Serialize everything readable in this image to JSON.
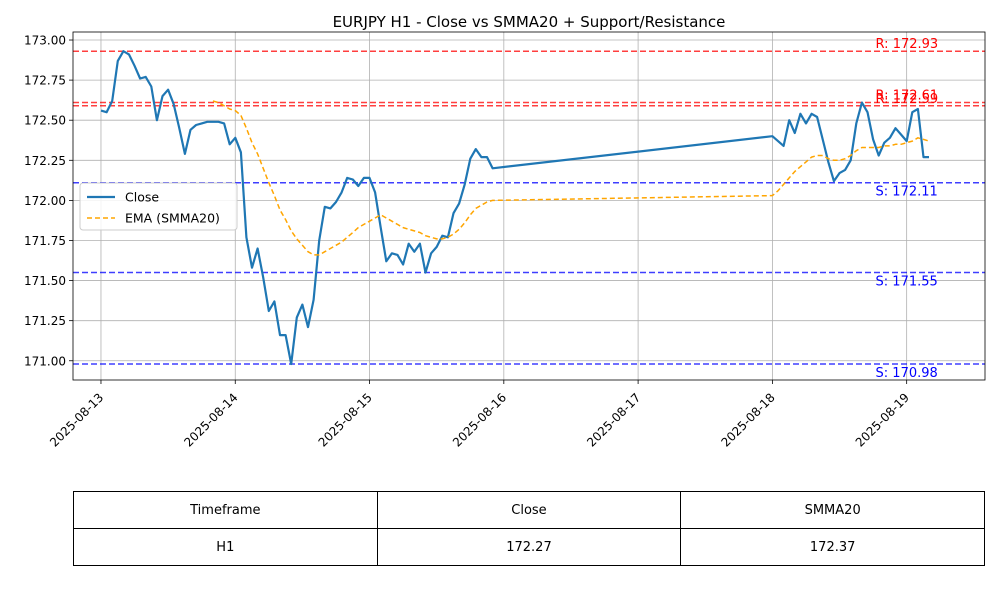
{
  "chart_data": {
    "type": "line",
    "title": "EURJPY H1 - Close vs SMMA20 + Support/Resistance",
    "xlabel": "",
    "ylabel": "",
    "x_ticks": [
      "2025-08-13",
      "2025-08-14",
      "2025-08-15",
      "2025-08-16",
      "2025-08-17",
      "2025-08-18",
      "2025-08-19"
    ],
    "y_ticks": [
      "171.00",
      "171.25",
      "171.50",
      "171.75",
      "172.00",
      "172.25",
      "172.50",
      "172.75",
      "173.00"
    ],
    "xlim": [
      "2025-08-12 19:00",
      "2025-08-19 14:00"
    ],
    "ylim": [
      170.88,
      173.05
    ],
    "grid": true,
    "legend_position": "center-left",
    "series": [
      {
        "name": "Close",
        "style": "solid",
        "color": "#1f77b4",
        "points": [
          [
            "2025-08-13 00:00",
            172.56
          ],
          [
            "2025-08-13 01:00",
            172.55
          ],
          [
            "2025-08-13 02:00",
            172.62
          ],
          [
            "2025-08-13 03:00",
            172.87
          ],
          [
            "2025-08-13 04:00",
            172.93
          ],
          [
            "2025-08-13 05:00",
            172.91
          ],
          [
            "2025-08-13 06:00",
            172.84
          ],
          [
            "2025-08-13 07:00",
            172.76
          ],
          [
            "2025-08-13 08:00",
            172.77
          ],
          [
            "2025-08-13 09:00",
            172.71
          ],
          [
            "2025-08-13 10:00",
            172.5
          ],
          [
            "2025-08-13 11:00",
            172.65
          ],
          [
            "2025-08-13 12:00",
            172.69
          ],
          [
            "2025-08-13 13:00",
            172.6
          ],
          [
            "2025-08-13 14:00",
            172.45
          ],
          [
            "2025-08-13 15:00",
            172.29
          ],
          [
            "2025-08-13 16:00",
            172.44
          ],
          [
            "2025-08-13 17:00",
            172.47
          ],
          [
            "2025-08-13 18:00",
            172.48
          ],
          [
            "2025-08-13 19:00",
            172.49
          ],
          [
            "2025-08-13 20:00",
            172.49
          ],
          [
            "2025-08-13 21:00",
            172.49
          ],
          [
            "2025-08-13 22:00",
            172.48
          ],
          [
            "2025-08-13 23:00",
            172.35
          ],
          [
            "2025-08-14 00:00",
            172.39
          ],
          [
            "2025-08-14 01:00",
            172.3
          ],
          [
            "2025-08-14 02:00",
            171.77
          ],
          [
            "2025-08-14 03:00",
            171.58
          ],
          [
            "2025-08-14 04:00",
            171.7
          ],
          [
            "2025-08-14 05:00",
            171.52
          ],
          [
            "2025-08-14 06:00",
            171.31
          ],
          [
            "2025-08-14 07:00",
            171.37
          ],
          [
            "2025-08-14 08:00",
            171.16
          ],
          [
            "2025-08-14 09:00",
            171.16
          ],
          [
            "2025-08-14 10:00",
            170.98
          ],
          [
            "2025-08-14 11:00",
            171.27
          ],
          [
            "2025-08-14 12:00",
            171.35
          ],
          [
            "2025-08-14 13:00",
            171.21
          ],
          [
            "2025-08-14 14:00",
            171.38
          ],
          [
            "2025-08-14 15:00",
            171.75
          ],
          [
            "2025-08-14 16:00",
            171.96
          ],
          [
            "2025-08-14 17:00",
            171.95
          ],
          [
            "2025-08-14 18:00",
            171.99
          ],
          [
            "2025-08-14 19:00",
            172.05
          ],
          [
            "2025-08-14 20:00",
            172.14
          ],
          [
            "2025-08-14 21:00",
            172.13
          ],
          [
            "2025-08-14 22:00",
            172.09
          ],
          [
            "2025-08-14 23:00",
            172.14
          ],
          [
            "2025-08-15 00:00",
            172.14
          ],
          [
            "2025-08-15 01:00",
            172.05
          ],
          [
            "2025-08-15 02:00",
            171.83
          ],
          [
            "2025-08-15 03:00",
            171.62
          ],
          [
            "2025-08-15 04:00",
            171.67
          ],
          [
            "2025-08-15 05:00",
            171.66
          ],
          [
            "2025-08-15 06:00",
            171.6
          ],
          [
            "2025-08-15 07:00",
            171.73
          ],
          [
            "2025-08-15 08:00",
            171.68
          ],
          [
            "2025-08-15 09:00",
            171.73
          ],
          [
            "2025-08-15 10:00",
            171.55
          ],
          [
            "2025-08-15 11:00",
            171.67
          ],
          [
            "2025-08-15 12:00",
            171.71
          ],
          [
            "2025-08-15 13:00",
            171.78
          ],
          [
            "2025-08-15 14:00",
            171.77
          ],
          [
            "2025-08-15 15:00",
            171.92
          ],
          [
            "2025-08-15 16:00",
            171.98
          ],
          [
            "2025-08-15 17:00",
            172.1
          ],
          [
            "2025-08-15 18:00",
            172.26
          ],
          [
            "2025-08-15 19:00",
            172.32
          ],
          [
            "2025-08-15 20:00",
            172.27
          ],
          [
            "2025-08-15 21:00",
            172.27
          ],
          [
            "2025-08-15 22:00",
            172.2
          ],
          [
            "2025-08-18 00:00",
            172.4
          ],
          [
            "2025-08-18 01:00",
            172.37
          ],
          [
            "2025-08-18 02:00",
            172.34
          ],
          [
            "2025-08-18 03:00",
            172.5
          ],
          [
            "2025-08-18 04:00",
            172.42
          ],
          [
            "2025-08-18 05:00",
            172.54
          ],
          [
            "2025-08-18 06:00",
            172.48
          ],
          [
            "2025-08-18 07:00",
            172.54
          ],
          [
            "2025-08-18 08:00",
            172.52
          ],
          [
            "2025-08-18 09:00",
            172.38
          ],
          [
            "2025-08-18 10:00",
            172.24
          ],
          [
            "2025-08-18 11:00",
            172.12
          ],
          [
            "2025-08-18 12:00",
            172.17
          ],
          [
            "2025-08-18 13:00",
            172.19
          ],
          [
            "2025-08-18 14:00",
            172.25
          ],
          [
            "2025-08-18 15:00",
            172.48
          ],
          [
            "2025-08-18 16:00",
            172.61
          ],
          [
            "2025-08-18 17:00",
            172.55
          ],
          [
            "2025-08-18 18:00",
            172.38
          ],
          [
            "2025-08-18 19:00",
            172.28
          ],
          [
            "2025-08-18 20:00",
            172.36
          ],
          [
            "2025-08-18 21:00",
            172.39
          ],
          [
            "2025-08-18 22:00",
            172.45
          ],
          [
            "2025-08-18 23:00",
            172.41
          ],
          [
            "2025-08-19 00:00",
            172.37
          ],
          [
            "2025-08-19 01:00",
            172.55
          ],
          [
            "2025-08-19 02:00",
            172.57
          ],
          [
            "2025-08-19 03:00",
            172.27
          ],
          [
            "2025-08-19 04:00",
            172.27
          ]
        ]
      },
      {
        "name": "EMA (SMMA20)",
        "style": "dashed",
        "color": "#ffa500",
        "points": [
          [
            "2025-08-13 20:00",
            172.62
          ],
          [
            "2025-08-13 21:00",
            172.61
          ],
          [
            "2025-08-13 22:00",
            172.59
          ],
          [
            "2025-08-13 23:00",
            172.57
          ],
          [
            "2025-08-14 00:00",
            172.56
          ],
          [
            "2025-08-14 01:00",
            172.53
          ],
          [
            "2025-08-14 02:00",
            172.45
          ],
          [
            "2025-08-14 03:00",
            172.36
          ],
          [
            "2025-08-14 04:00",
            172.29
          ],
          [
            "2025-08-14 05:00",
            172.2
          ],
          [
            "2025-08-14 06:00",
            172.11
          ],
          [
            "2025-08-14 07:00",
            172.03
          ],
          [
            "2025-08-14 08:00",
            171.94
          ],
          [
            "2025-08-14 09:00",
            171.88
          ],
          [
            "2025-08-14 10:00",
            171.81
          ],
          [
            "2025-08-14 11:00",
            171.76
          ],
          [
            "2025-08-14 12:00",
            171.72
          ],
          [
            "2025-08-14 13:00",
            171.68
          ],
          [
            "2025-08-14 14:00",
            171.66
          ],
          [
            "2025-08-14 15:00",
            171.66
          ],
          [
            "2025-08-14 16:00",
            171.68
          ],
          [
            "2025-08-14 17:00",
            171.7
          ],
          [
            "2025-08-14 18:00",
            171.72
          ],
          [
            "2025-08-14 19:00",
            171.74
          ],
          [
            "2025-08-14 20:00",
            171.77
          ],
          [
            "2025-08-14 21:00",
            171.8
          ],
          [
            "2025-08-14 22:00",
            171.83
          ],
          [
            "2025-08-14 23:00",
            171.85
          ],
          [
            "2025-08-15 00:00",
            171.87
          ],
          [
            "2025-08-15 01:00",
            171.89
          ],
          [
            "2025-08-15 02:00",
            171.91
          ],
          [
            "2025-08-15 03:00",
            171.89
          ],
          [
            "2025-08-15 04:00",
            171.87
          ],
          [
            "2025-08-15 05:00",
            171.85
          ],
          [
            "2025-08-15 06:00",
            171.83
          ],
          [
            "2025-08-15 07:00",
            171.82
          ],
          [
            "2025-08-15 08:00",
            171.81
          ],
          [
            "2025-08-15 09:00",
            171.8
          ],
          [
            "2025-08-15 10:00",
            171.78
          ],
          [
            "2025-08-15 11:00",
            171.77
          ],
          [
            "2025-08-15 12:00",
            171.76
          ],
          [
            "2025-08-15 13:00",
            171.76
          ],
          [
            "2025-08-15 14:00",
            171.77
          ],
          [
            "2025-08-15 15:00",
            171.79
          ],
          [
            "2025-08-15 16:00",
            171.82
          ],
          [
            "2025-08-15 17:00",
            171.86
          ],
          [
            "2025-08-15 18:00",
            171.91
          ],
          [
            "2025-08-15 19:00",
            171.95
          ],
          [
            "2025-08-15 20:00",
            171.97
          ],
          [
            "2025-08-15 21:00",
            171.99
          ],
          [
            "2025-08-15 22:00",
            172.0
          ],
          [
            "2025-08-18 00:00",
            172.03
          ],
          [
            "2025-08-18 01:00",
            172.06
          ],
          [
            "2025-08-18 02:00",
            172.1
          ],
          [
            "2025-08-18 03:00",
            172.14
          ],
          [
            "2025-08-18 04:00",
            172.18
          ],
          [
            "2025-08-18 05:00",
            172.21
          ],
          [
            "2025-08-18 06:00",
            172.24
          ],
          [
            "2025-08-18 07:00",
            172.27
          ],
          [
            "2025-08-18 08:00",
            172.28
          ],
          [
            "2025-08-18 09:00",
            172.28
          ],
          [
            "2025-08-18 10:00",
            172.26
          ],
          [
            "2025-08-18 11:00",
            172.25
          ],
          [
            "2025-08-18 12:00",
            172.25
          ],
          [
            "2025-08-18 13:00",
            172.26
          ],
          [
            "2025-08-18 14:00",
            172.28
          ],
          [
            "2025-08-18 15:00",
            172.31
          ],
          [
            "2025-08-18 16:00",
            172.33
          ],
          [
            "2025-08-18 17:00",
            172.33
          ],
          [
            "2025-08-18 18:00",
            172.33
          ],
          [
            "2025-08-18 19:00",
            172.33
          ],
          [
            "2025-08-18 20:00",
            172.34
          ],
          [
            "2025-08-18 21:00",
            172.34
          ],
          [
            "2025-08-18 22:00",
            172.35
          ],
          [
            "2025-08-18 23:00",
            172.35
          ],
          [
            "2025-08-19 00:00",
            172.36
          ],
          [
            "2025-08-19 01:00",
            172.37
          ],
          [
            "2025-08-19 02:00",
            172.39
          ],
          [
            "2025-08-19 03:00",
            172.38
          ],
          [
            "2025-08-19 04:00",
            172.37
          ]
        ]
      }
    ],
    "levels": [
      {
        "kind": "resistance",
        "value": 172.93,
        "label": "R: 172.93",
        "color": "#ff0000"
      },
      {
        "kind": "resistance",
        "value": 172.61,
        "label": "R: 172.61",
        "color": "#ff0000"
      },
      {
        "kind": "resistance",
        "value": 172.59,
        "label": "R: 172.59",
        "color": "#ff0000"
      },
      {
        "kind": "support",
        "value": 172.11,
        "label": "S: 172.11",
        "color": "#0000ff"
      },
      {
        "kind": "support",
        "value": 171.55,
        "label": "S: 171.55",
        "color": "#0000ff"
      },
      {
        "kind": "support",
        "value": 170.98,
        "label": "S: 170.98",
        "color": "#0000ff"
      }
    ]
  },
  "table": {
    "headers": [
      "Timeframe",
      "Close",
      "SMMA20"
    ],
    "rows": [
      [
        "H1",
        "172.27",
        "172.37"
      ]
    ]
  }
}
